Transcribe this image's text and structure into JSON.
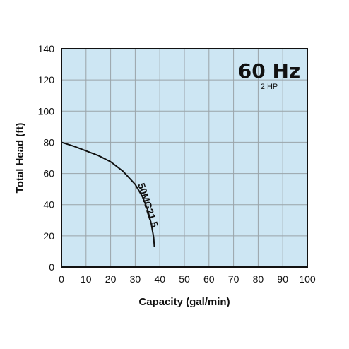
{
  "chart_data": {
    "type": "line",
    "title": "",
    "xlabel": "Capacity (gal/min)",
    "ylabel": "Total Head (ft)",
    "xlim": [
      0,
      100
    ],
    "ylim": [
      0,
      140
    ],
    "x_ticks": [
      0,
      10,
      20,
      30,
      40,
      50,
      60,
      70,
      80,
      90,
      100
    ],
    "y_ticks": [
      0,
      20,
      40,
      60,
      80,
      100,
      120,
      140
    ],
    "grid": true,
    "frequency_label": "60 Hz",
    "power_label": "2 HP",
    "series": [
      {
        "name": "50MG21.5",
        "x": [
          0,
          5,
          10,
          15,
          20,
          25,
          30,
          33,
          35,
          36.5,
          37.5,
          37.8
        ],
        "y": [
          80,
          77.5,
          74.5,
          71.5,
          67.5,
          61.5,
          53,
          45,
          37,
          28,
          19,
          13
        ]
      }
    ],
    "colors": {
      "plot_background": "#cde6f3",
      "grid": "#9aa3a8",
      "line": "#111111"
    }
  }
}
